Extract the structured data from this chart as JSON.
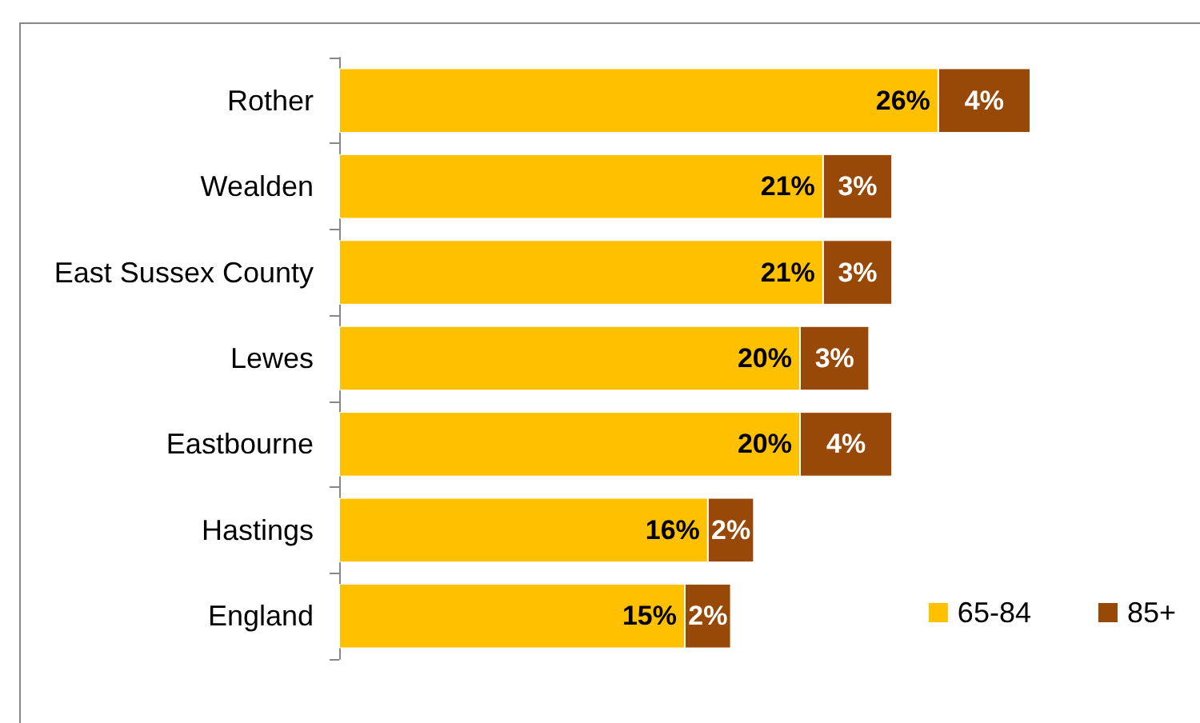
{
  "chart_data": {
    "type": "bar",
    "orientation": "horizontal",
    "stacked": true,
    "legend": "bottom right",
    "tick_labels": "y",
    "categories": [
      "Rother",
      "Wealden",
      "East Sussex County",
      "Lewes",
      "Eastbourne",
      "Hastings",
      "England"
    ],
    "series": [
      {
        "name": "65-84",
        "color": "#ffc000",
        "values": [
          26,
          21,
          21,
          20,
          20,
          16,
          15
        ],
        "value_labels": [
          "26%",
          "21%",
          "21%",
          "20%",
          "20%",
          "16%",
          "15%"
        ]
      },
      {
        "name": "85+",
        "color": "#984807",
        "values": [
          4,
          3,
          3,
          3,
          4,
          2,
          2
        ],
        "value_labels": [
          "4%",
          "3%",
          "3%",
          "3%",
          "4%",
          "2%",
          "2%"
        ]
      }
    ]
  }
}
